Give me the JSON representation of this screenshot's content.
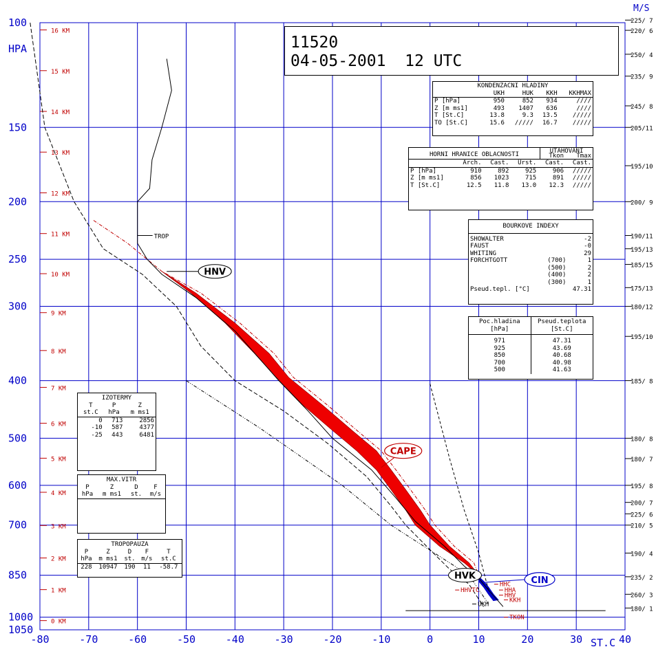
{
  "chart_data": {
    "type": "line",
    "title": "11520",
    "subtitle": "04-05-2001  12 UTC",
    "xlabel": "ST.C",
    "ylabel": "HPA",
    "wind_unit_label": "M/S",
    "xlim": [
      -80,
      40
    ],
    "ylim": [
      1050,
      100
    ],
    "x_ticks": [
      "-80",
      "-70",
      "-60",
      "-50",
      "-40",
      "-30",
      "-20",
      "-10",
      "0",
      "10",
      "20",
      "30",
      "40"
    ],
    "p_levels": [
      100,
      150,
      200,
      250,
      300,
      400,
      500,
      600,
      700,
      850,
      1000,
      1050
    ],
    "height_levels": [
      {
        "km": 16,
        "label": "16 KM"
      },
      {
        "km": 15,
        "label": "15 KM"
      },
      {
        "km": 14,
        "label": "14 KM"
      },
      {
        "km": 13,
        "label": "13 KM"
      },
      {
        "km": 12,
        "label": "12 KM"
      },
      {
        "km": 11,
        "label": "11 KM"
      },
      {
        "km": 10,
        "label": "10 KM"
      },
      {
        "km": 9,
        "label": "9 KM"
      },
      {
        "km": 8,
        "label": "8 KM"
      },
      {
        "km": 7,
        "label": "7 KM"
      },
      {
        "km": 6,
        "label": "6 KM"
      },
      {
        "km": 5,
        "label": "5 KM"
      },
      {
        "km": 4,
        "label": "4 KM"
      },
      {
        "km": 3,
        "label": "3 KM"
      },
      {
        "km": 2,
        "label": "2 KM"
      },
      {
        "km": 1,
        "label": "1 KM"
      },
      {
        "km": 0,
        "label": "0 KM"
      }
    ],
    "winds": [
      {
        "p": 99,
        "label": "225/ 7"
      },
      {
        "p": 103,
        "label": "220/ 6"
      },
      {
        "p": 113,
        "label": "250/ 4"
      },
      {
        "p": 123,
        "label": "235/ 9"
      },
      {
        "p": 138,
        "label": "245/ 8"
      },
      {
        "p": 150,
        "label": "205/11"
      },
      {
        "p": 174,
        "label": "195/10"
      },
      {
        "p": 200,
        "label": "200/ 9"
      },
      {
        "p": 228,
        "label": "190/11"
      },
      {
        "p": 240,
        "label": "195/13"
      },
      {
        "p": 255,
        "label": "185/15"
      },
      {
        "p": 279,
        "label": "175/13"
      },
      {
        "p": 300,
        "label": "180/12"
      },
      {
        "p": 337,
        "label": "195/10"
      },
      {
        "p": 400,
        "label": "185/ 8"
      },
      {
        "p": 500,
        "label": "180/ 8"
      },
      {
        "p": 541,
        "label": "180/ 7"
      },
      {
        "p": 600,
        "label": "195/ 8"
      },
      {
        "p": 641,
        "label": "200/ 7"
      },
      {
        "p": 670,
        "label": "225/ 6"
      },
      {
        "p": 700,
        "label": "210/ 5"
      },
      {
        "p": 780,
        "label": "190/ 4"
      },
      {
        "p": 855,
        "label": "235/ 2"
      },
      {
        "p": 915,
        "label": "260/ 3"
      },
      {
        "p": 965,
        "label": "180/ 1"
      }
    ],
    "series": [
      {
        "points": [
          [
            -54,
            115
          ],
          [
            -53,
            130
          ],
          [
            -55,
            150
          ],
          [
            -57,
            170
          ],
          [
            -57.5,
            190
          ],
          [
            -60,
            200
          ],
          [
            -60,
            220
          ],
          [
            -60,
            235
          ],
          [
            -58,
            250
          ],
          [
            -55,
            265
          ],
          [
            -48,
            290
          ],
          [
            -40,
            330
          ],
          [
            -31,
            400
          ],
          [
            -25,
            450
          ],
          [
            -20,
            500
          ],
          [
            -12,
            565
          ],
          [
            -7,
            630
          ],
          [
            -3,
            690
          ],
          [
            3,
            760
          ],
          [
            7,
            820
          ],
          [
            10,
            860
          ],
          [
            12,
            900
          ],
          [
            15,
            960
          ]
        ]
      },
      {
        "points": [
          [
            -82,
            100
          ],
          [
            -79,
            150
          ],
          [
            -73,
            200
          ],
          [
            -67,
            240
          ],
          [
            -59,
            265
          ],
          [
            -52,
            300
          ],
          [
            -47,
            350
          ],
          [
            -40,
            400
          ],
          [
            -30,
            450
          ],
          [
            -21,
            510
          ],
          [
            -13,
            580
          ],
          [
            -8,
            650
          ],
          [
            -5,
            700
          ],
          [
            0,
            770
          ],
          [
            4,
            830
          ],
          [
            8,
            880
          ],
          [
            11,
            960
          ]
        ]
      },
      {
        "points": [
          [
            -50,
            400
          ],
          [
            -35,
            480
          ],
          [
            -18,
            600
          ],
          [
            -8,
            700
          ],
          [
            3,
            800
          ],
          [
            8,
            850
          ],
          [
            12,
            950
          ]
        ]
      },
      {
        "points": [
          [
            0,
            405
          ],
          [
            4,
            540
          ],
          [
            7,
            660
          ],
          [
            10,
            780
          ],
          [
            12,
            900
          ]
        ]
      }
    ],
    "cape_region": {
      "label": "CAPE",
      "env_edge": [
        [
          -55,
          262
        ],
        [
          -49,
          285
        ],
        [
          -42,
          320
        ],
        [
          -36,
          360
        ],
        [
          -31.5,
          395
        ],
        [
          -26,
          440
        ],
        [
          -20,
          485
        ],
        [
          -15,
          525
        ],
        [
          -11,
          565
        ],
        [
          -8,
          610
        ],
        [
          -5,
          660
        ],
        [
          -3,
          700
        ],
        [
          2,
          760
        ],
        [
          7,
          810
        ],
        [
          10,
          850
        ]
      ],
      "parcel_edge": [
        [
          -55,
          262
        ],
        [
          -48,
          285
        ],
        [
          -40,
          320
        ],
        [
          -33,
          360
        ],
        [
          -29,
          395
        ],
        [
          -22,
          440
        ],
        [
          -16,
          485
        ],
        [
          -11,
          525
        ],
        [
          -8,
          565
        ],
        [
          -5,
          610
        ],
        [
          -2,
          660
        ],
        [
          0,
          700
        ],
        [
          4,
          760
        ],
        [
          8,
          810
        ],
        [
          10,
          850
        ]
      ]
    },
    "parcel_curve": [
      [
        -69,
        215
      ],
      [
        -62,
        235
      ],
      [
        -55,
        262
      ],
      [
        -47,
        285
      ],
      [
        -39,
        320
      ],
      [
        -32,
        360
      ],
      [
        -28,
        395
      ],
      [
        -21,
        440
      ],
      [
        -15,
        485
      ],
      [
        -10,
        525
      ],
      [
        -7,
        565
      ],
      [
        -4,
        610
      ],
      [
        -1,
        660
      ],
      [
        1,
        700
      ],
      [
        5,
        760
      ],
      [
        9,
        810
      ],
      [
        10,
        850
      ]
    ],
    "cin_region": {
      "label": "CIN",
      "points": [
        [
          10,
          855
        ],
        [
          11,
          870
        ],
        [
          12,
          890
        ],
        [
          13,
          915
        ],
        [
          14,
          935
        ],
        [
          13,
          938
        ],
        [
          12,
          915
        ],
        [
          11,
          890
        ],
        [
          10,
          870
        ]
      ]
    },
    "markers": [
      {
        "label": "HNV",
        "x": -54,
        "p": 262
      },
      {
        "label": "HVK",
        "x": 10,
        "p": 850
      },
      {
        "label": "TROP",
        "x": -60,
        "p": 228
      }
    ],
    "small_labels": [
      {
        "label": "HHC",
        "x": 14,
        "p": 880
      },
      {
        "label": "HHVTC",
        "x": 6,
        "p": 900
      },
      {
        "label": "HHA",
        "x": 15,
        "p": 900
      },
      {
        "label": "HHV",
        "x": 15,
        "p": 918
      },
      {
        "label": "KKH",
        "x": 16,
        "p": 935
      },
      {
        "label": "UKH",
        "x": 9.5,
        "p": 950
      },
      {
        "label": "TKON",
        "x": 16,
        "p": 1000
      }
    ]
  },
  "panels": {
    "kondenzace": {
      "title": "KONDENZACNI HLADINY",
      "cols": [
        "",
        "UKH",
        "HUK",
        "KKH",
        "KKHMAX"
      ],
      "rows": [
        [
          "P  [hPa]",
          "950",
          "852",
          "934",
          "////"
        ],
        [
          "Z  [m ms1]",
          "493",
          "1407",
          "636",
          "////"
        ],
        [
          "T  [St.C]",
          "13.8",
          "9.3",
          "13.5",
          "/////"
        ],
        [
          "TO [St.C]",
          "15.6",
          "/////",
          "16.7",
          "/////"
        ]
      ]
    },
    "horni": {
      "title": "HORNI HRANICE OBLACNOSTI",
      "utahovani": "UTAHOVANI",
      "subhdr1": [
        "",
        "",
        "",
        "",
        "Tkon",
        "Tmax"
      ],
      "subhdr2": [
        "",
        "Arch.",
        "Cast.",
        "Urst.",
        "Cast.",
        "Cast."
      ],
      "rows": [
        [
          "P  [hPa]",
          "910",
          "892",
          "925",
          "906",
          "/////"
        ],
        [
          "Z  [m ms1]",
          "856",
          "1023",
          "715",
          "891",
          "/////"
        ],
        [
          "T  [St.C]",
          "12.5",
          "11.8",
          "13.0",
          "12.3",
          "/////"
        ]
      ]
    },
    "bourkove": {
      "title": "BOURKOVE INDEXY",
      "rows": [
        [
          "SHOWALTER",
          "",
          "-2"
        ],
        [
          "FAUST",
          "",
          "-0"
        ],
        [
          "WHITING",
          "",
          "29"
        ],
        [
          "FORCHTGOTT",
          "(700)",
          "1"
        ],
        [
          "",
          "(500)",
          "2"
        ],
        [
          "",
          "(400)",
          "2"
        ],
        [
          "",
          "(300)",
          "1"
        ],
        [
          "Pseud.tepl. [°C]",
          "",
          "47.31"
        ]
      ]
    },
    "pseudo": {
      "col1": "Poc.hladina",
      "col1b": "[hPa]",
      "col2": "Pseud.teplota",
      "col2b": "[St.C]",
      "rows": [
        [
          "971",
          "47.31"
        ],
        [
          "925",
          "43.69"
        ],
        [
          "850",
          "40.68"
        ],
        [
          "700",
          "40.98"
        ],
        [
          "500",
          "41.63"
        ]
      ]
    },
    "izotermy": {
      "title": "IZOTERMY",
      "hdr1": [
        "T",
        "P",
        "Z"
      ],
      "hdr2": [
        "st.C",
        "hPa",
        "m ms1"
      ],
      "rows": [
        [
          "0",
          "713",
          "2856"
        ],
        [
          "-10",
          "587",
          "4377"
        ],
        [
          "-25",
          "443",
          "6481"
        ]
      ]
    },
    "maxvitr": {
      "title": "MAX.VITR",
      "hdr1": [
        "P",
        "Z",
        "D",
        "F"
      ],
      "hdr2": [
        "hPa",
        "m ms1",
        "st.",
        "m/s"
      ]
    },
    "tropopauza": {
      "title": "TROPOPAUZA",
      "hdr1": [
        "P",
        "Z",
        "D",
        "F",
        "T"
      ],
      "hdr2": [
        "hPa",
        "m ms1",
        "st.",
        "m/s",
        "st.C"
      ],
      "row": [
        "228",
        "10947",
        "190",
        "11",
        "-58.7"
      ]
    }
  }
}
